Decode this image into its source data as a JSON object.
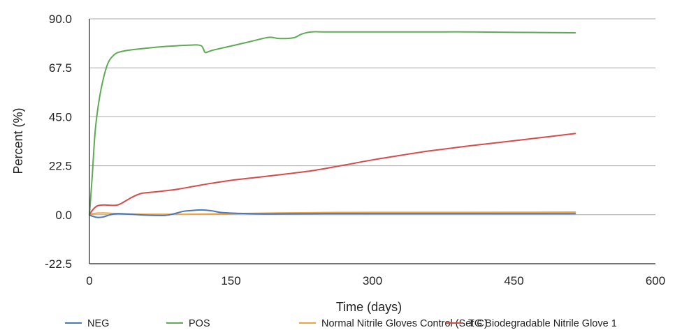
{
  "chart_data": {
    "type": "line",
    "title": "",
    "xlabel": "Time (days)",
    "ylabel": "Percent (%)",
    "xlim": [
      0,
      600
    ],
    "ylim": [
      -22.5,
      90
    ],
    "x_ticks": [
      0,
      150,
      300,
      450,
      600
    ],
    "x_tick_labels": [
      "0",
      "150",
      "300",
      "450",
      "600"
    ],
    "y_ticks": [
      -22.5,
      0,
      22.5,
      45,
      67.5,
      90
    ],
    "y_tick_labels": [
      "-22.5",
      "0.0",
      "22.5",
      "45.0",
      "67.5",
      "90.0"
    ],
    "grid": "horizontal",
    "legend_position": "bottom",
    "series": [
      {
        "name": "NEG",
        "color": "#4a78b8",
        "points": [
          [
            0,
            0
          ],
          [
            2,
            -0.5
          ],
          [
            8,
            -1.2
          ],
          [
            15,
            -1
          ],
          [
            22,
            0
          ],
          [
            30,
            0.5
          ],
          [
            45,
            0.2
          ],
          [
            60,
            -0.2
          ],
          [
            80,
            -0.3
          ],
          [
            90,
            0.5
          ],
          [
            100,
            1.6
          ],
          [
            110,
            2
          ],
          [
            120,
            2.2
          ],
          [
            130,
            1.8
          ],
          [
            140,
            1
          ],
          [
            160,
            0.6
          ],
          [
            180,
            0.4
          ],
          [
            200,
            0.4
          ],
          [
            250,
            0.5
          ],
          [
            300,
            0.5
          ],
          [
            400,
            0.5
          ],
          [
            515,
            0.5
          ]
        ]
      },
      {
        "name": "POS",
        "color": "#5faa55",
        "points": [
          [
            0,
            0
          ],
          [
            3,
            18
          ],
          [
            6,
            38
          ],
          [
            10,
            52
          ],
          [
            15,
            63
          ],
          [
            20,
            70
          ],
          [
            25,
            73
          ],
          [
            30,
            74.5
          ],
          [
            40,
            75.5
          ],
          [
            60,
            76.5
          ],
          [
            80,
            77.3
          ],
          [
            100,
            77.8
          ],
          [
            110,
            78
          ],
          [
            115,
            78
          ],
          [
            119,
            77.5
          ],
          [
            121,
            76
          ],
          [
            123,
            74.5
          ],
          [
            130,
            75.5
          ],
          [
            150,
            77.5
          ],
          [
            170,
            79.5
          ],
          [
            190,
            81.5
          ],
          [
            200,
            81
          ],
          [
            210,
            81
          ],
          [
            218,
            81.5
          ],
          [
            225,
            83
          ],
          [
            235,
            84
          ],
          [
            250,
            84
          ],
          [
            280,
            84
          ],
          [
            350,
            84
          ],
          [
            400,
            84
          ],
          [
            450,
            83.8
          ],
          [
            515,
            83.6
          ]
        ]
      },
      {
        "name": "Normal Nitrile Gloves Control (Set C)",
        "color": "#f2a33a",
        "points": [
          [
            0,
            0
          ],
          [
            5,
            0.6
          ],
          [
            15,
            0.8
          ],
          [
            30,
            0.5
          ],
          [
            60,
            0.2
          ],
          [
            100,
            0.2
          ],
          [
            150,
            0.5
          ],
          [
            200,
            0.8
          ],
          [
            250,
            1
          ],
          [
            300,
            1.1
          ],
          [
            400,
            1.1
          ],
          [
            515,
            1.2
          ]
        ]
      },
      {
        "name": "TG Biodegradable Nitrile Glove 1",
        "color": "#d94a4a",
        "points": [
          [
            0,
            0
          ],
          [
            3,
            2
          ],
          [
            8,
            4
          ],
          [
            15,
            4.5
          ],
          [
            25,
            4.3
          ],
          [
            30,
            4.5
          ],
          [
            35,
            5.5
          ],
          [
            45,
            8
          ],
          [
            55,
            9.8
          ],
          [
            70,
            10.5
          ],
          [
            90,
            11.5
          ],
          [
            110,
            13
          ],
          [
            130,
            14.5
          ],
          [
            150,
            15.8
          ],
          [
            180,
            17.3
          ],
          [
            210,
            18.8
          ],
          [
            240,
            20.5
          ],
          [
            270,
            22.8
          ],
          [
            300,
            25.2
          ],
          [
            330,
            27.3
          ],
          [
            360,
            29.3
          ],
          [
            400,
            31.5
          ],
          [
            450,
            34
          ],
          [
            515,
            37.3
          ]
        ]
      }
    ]
  }
}
